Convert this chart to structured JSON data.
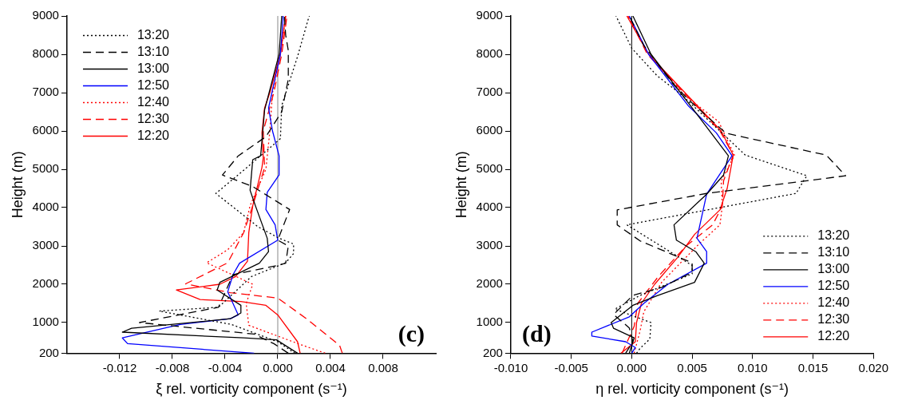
{
  "chart_data": [
    {
      "type": "line",
      "xlabel": "ξ rel. vorticity component (s⁻¹)",
      "ylabel": "Height (m)",
      "xlim": [
        -0.016,
        0.012
      ],
      "ylim": [
        200,
        9000
      ],
      "xticks": [
        -0.012,
        -0.008,
        -0.004,
        {
          "value": 0,
          "label": "0.000"
        },
        0.004,
        0.008
      ],
      "yticks": [
        200,
        1000,
        2000,
        3000,
        4000,
        5000,
        6000,
        7000,
        8000,
        9000
      ],
      "grid": false,
      "legend": "top left",
      "marker": "none",
      "annotations": [
        "(c)"
      ],
      "ref_lines": [
        {
          "axis": "x",
          "value": 0,
          "color": "#888888"
        }
      ],
      "series": [
        {
          "name": "13:20",
          "color": "#000000",
          "line_style": "dotted",
          "x": [
            0.0013,
            0.0,
            -0.0035,
            -0.009,
            -0.0045,
            -0.002,
            0.0006,
            0.0012,
            0.0012,
            0.0001,
            -0.0015,
            -0.0047,
            -0.0025,
            -0.0008,
            0.0002,
            0.0003,
            0.0015,
            0.0023,
            0.0024
          ],
          "values": [
            200,
            500,
            950,
            1300,
            1400,
            2200,
            2560,
            2800,
            3050,
            3200,
            3500,
            4370,
            5000,
            5500,
            5800,
            6660,
            7940,
            8900,
            9000
          ]
        },
        {
          "name": "13:10",
          "color": "#000000",
          "line_style": "dashed",
          "x": [
            0.0008,
            -0.0003,
            -0.0018,
            -0.0105,
            -0.0045,
            -0.0034,
            0.0001,
            0.0006,
            0.0008,
            0.0,
            0.0009,
            -0.0019,
            -0.0042,
            -0.003,
            -0.0009,
            0.0003,
            0.0008,
            0.0008,
            0.0006,
            0.0005
          ],
          "values": [
            200,
            450,
            700,
            1000,
            1400,
            2250,
            2500,
            2550,
            3000,
            3150,
            3950,
            4550,
            4850,
            5350,
            5850,
            6500,
            7350,
            8100,
            8500,
            9000
          ]
        },
        {
          "name": "13:00",
          "color": "#000000",
          "line_style": "solid",
          "x": [
            0.0015,
            -0.0001,
            -0.0026,
            -0.0118,
            -0.0111,
            -0.0036,
            -0.0028,
            -0.0028,
            -0.0046,
            -0.0044,
            -0.0014,
            -0.0007,
            -0.0008,
            -0.0017,
            -0.0021,
            -0.0019,
            -0.0013,
            -0.001,
            0.0001,
            0.0003
          ],
          "values": [
            200,
            550,
            600,
            750,
            850,
            1100,
            1250,
            1450,
            1850,
            2050,
            2550,
            2850,
            3200,
            4050,
            4450,
            5250,
            5350,
            6550,
            8000,
            9000
          ]
        },
        {
          "name": "12:50",
          "color": "#0000ff",
          "line_style": "solid",
          "x": [
            -0.0018,
            -0.0114,
            -0.0118,
            -0.0074,
            -0.0036,
            -0.003,
            -0.0038,
            -0.0034,
            -0.0029,
            0.0,
            -0.0002,
            -0.0009,
            -0.0008,
            0.0001,
            0.0001,
            -0.0004,
            -0.0007,
            0.0002,
            0.0004,
            0.0004
          ],
          "values": [
            200,
            450,
            600,
            950,
            1100,
            1200,
            1800,
            2250,
            2550,
            3150,
            3550,
            3950,
            4400,
            4850,
            5350,
            6000,
            6600,
            8000,
            8900,
            9000
          ]
        },
        {
          "name": "12:40",
          "color": "#ff0000",
          "line_style": "dotted",
          "x": [
            0.0036,
            0.0017,
            -0.0022,
            -0.0024,
            -0.0019,
            -0.0054,
            -0.0038,
            -0.0026,
            -0.0021,
            -0.0009,
            -0.0006,
            -0.0004,
            0.0002,
            0.0006
          ],
          "values": [
            200,
            430,
            930,
            1500,
            2000,
            2560,
            2900,
            3340,
            4050,
            5000,
            6000,
            7000,
            8000,
            9000
          ]
        },
        {
          "name": "12:30",
          "color": "#ff0000",
          "line_style": "dashed",
          "x": [
            0.0049,
            0.0047,
            0.0023,
            0.0,
            -0.0036,
            -0.007,
            -0.0038,
            -0.0026,
            -0.0019,
            -0.001,
            -0.0011,
            -0.0003,
            0.0003,
            0.0007
          ],
          "values": [
            200,
            400,
            1070,
            1640,
            1780,
            2010,
            2560,
            3340,
            4050,
            5040,
            6000,
            7000,
            8000,
            9000
          ]
        },
        {
          "name": "12:20",
          "color": "#ff0000",
          "line_style": "solid",
          "x": [
            0.0017,
            0.0015,
            0.0,
            -0.0009,
            -0.0028,
            -0.0059,
            -0.0077,
            -0.0044,
            -0.0032,
            -0.0023,
            -0.0022,
            -0.0019,
            -0.0012,
            -0.0011,
            -0.0012,
            -0.001,
            -0.0006,
            0.0002,
            0.0006
          ],
          "values": [
            200,
            500,
            1200,
            1450,
            1550,
            1600,
            1850,
            2000,
            2200,
            2600,
            3350,
            4050,
            5050,
            5300,
            5950,
            6600,
            7000,
            8000,
            9000
          ]
        }
      ]
    },
    {
      "type": "line",
      "xlabel": "η rel. vorticity component (s⁻¹)",
      "ylabel": "Height (m)",
      "xlim": [
        -0.01,
        0.02
      ],
      "ylim": [
        200,
        9000
      ],
      "xticks": [
        {
          "value": -0.01,
          "label": "-0.010"
        },
        -0.005,
        {
          "value": 0,
          "label": "0.000"
        },
        0.005,
        {
          "value": 0.01,
          "label": "0.010"
        },
        0.015,
        {
          "value": 0.02,
          "label": "0.020"
        }
      ],
      "yticks": [
        200,
        1000,
        2000,
        3000,
        4000,
        5000,
        6000,
        7000,
        8000,
        9000
      ],
      "grid": false,
      "legend": "bottom right",
      "marker": "none",
      "annotations": [
        "(d)"
      ],
      "ref_lines": [
        {
          "axis": "x",
          "value": 0,
          "color": "#000000"
        }
      ],
      "series": [
        {
          "name": "13:20",
          "color": "#000000",
          "line_style": "dotted",
          "x": [
            0.0004,
            0.0007,
            0.0015,
            0.0016,
            -0.0014,
            0.0007,
            0.005,
            0.005,
            -0.0004,
            0.0136,
            0.0142,
            0.0145,
            0.0094,
            0.0041,
            0.0021,
            0.0,
            -0.0013
          ],
          "values": [
            200,
            330,
            570,
            1000,
            1350,
            1710,
            2270,
            2490,
            3550,
            4370,
            4690,
            4830,
            5370,
            6950,
            7440,
            8160,
            9000
          ]
        },
        {
          "name": "13:10",
          "color": "#000000",
          "line_style": "dashed",
          "x": [
            -0.0005,
            0.0001,
            -0.0002,
            -0.0015,
            0.0001,
            0.0025,
            0.005,
            0.005,
            0.0007,
            -0.0012,
            -0.0012,
            0.0062,
            0.0177,
            0.0161,
            0.0078,
            0.005,
            0.0034,
            0.001,
            -0.0002
          ],
          "values": [
            200,
            500,
            860,
            1210,
            1710,
            1920,
            2310,
            2560,
            3130,
            3550,
            3940,
            4370,
            4830,
            5370,
            5940,
            6730,
            7230,
            8230,
            9000
          ]
        },
        {
          "name": "13:00",
          "color": "#000000",
          "line_style": "solid",
          "x": [
            -0.0002,
            0.0002,
            -0.0015,
            -0.0017,
            0.0001,
            0.0021,
            0.0052,
            0.006,
            0.0053,
            0.0037,
            0.0035,
            0.0062,
            0.0076,
            0.008,
            0.005,
            0.0016,
            0.0001
          ],
          "values": [
            200,
            600,
            850,
            1000,
            1450,
            1700,
            2050,
            2550,
            2850,
            3150,
            3550,
            4350,
            4850,
            5350,
            6600,
            8000,
            9000
          ]
        },
        {
          "name": "12:50",
          "color": "#0000ff",
          "line_style": "solid",
          "x": [
            0.0,
            0.0003,
            -0.0005,
            -0.0033,
            -0.0033,
            -0.0002,
            0.001,
            0.003,
            0.0062,
            0.0062,
            0.0054,
            0.0062,
            0.0083,
            0.007,
            0.0047,
            0.0014,
            -0.0002
          ],
          "values": [
            200,
            350,
            500,
            650,
            750,
            1150,
            1500,
            2000,
            2550,
            2850,
            3200,
            4350,
            5350,
            5950,
            6650,
            8000,
            9000
          ]
        },
        {
          "name": "12:40",
          "color": "#ff0000",
          "line_style": "dotted",
          "x": [
            0.0002,
            0.0007,
            0.001,
            0.0025,
            0.0056,
            0.0073,
            0.0075,
            0.0074,
            0.0085,
            0.0072,
            0.0043,
            0.0014,
            -0.0003
          ],
          "values": [
            200,
            790,
            1280,
            2060,
            3060,
            3550,
            4050,
            4690,
            5370,
            6240,
            6950,
            8000,
            9000
          ]
        },
        {
          "name": "12:30",
          "color": "#ff0000",
          "line_style": "dashed",
          "x": [
            -0.0008,
            0.0002,
            0.0005,
            0.0022,
            0.0045,
            0.0067,
            0.0075,
            0.0076,
            0.0084,
            0.0073,
            0.0043,
            0.0013,
            -0.0003
          ],
          "values": [
            200,
            900,
            1500,
            2200,
            3000,
            3550,
            4050,
            4700,
            5370,
            6000,
            7000,
            8000,
            9000
          ]
        },
        {
          "name": "12:20",
          "color": "#ff0000",
          "line_style": "solid",
          "x": [
            -0.0009,
            0.0003,
            0.0004,
            0.0008,
            0.0019,
            0.0038,
            0.0052,
            0.0073,
            0.0079,
            0.0084,
            0.0074,
            0.0044,
            0.0014,
            -0.0004
          ],
          "values": [
            200,
            500,
            1000,
            1500,
            2000,
            2700,
            3300,
            3940,
            4500,
            5370,
            6000,
            7000,
            8000,
            9000
          ]
        }
      ]
    }
  ]
}
